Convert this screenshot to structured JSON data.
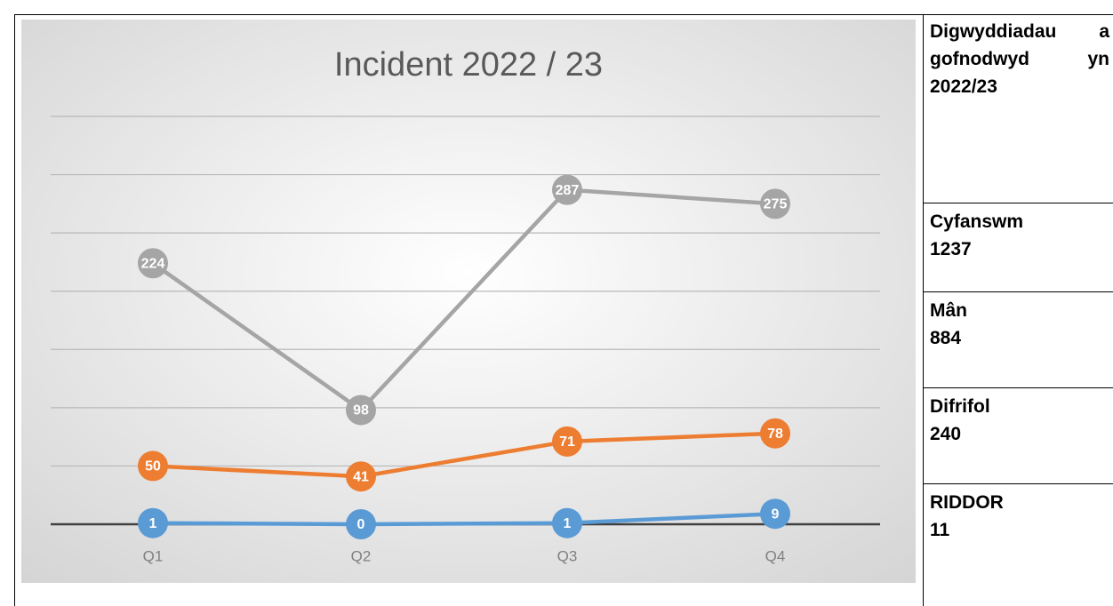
{
  "chart_data": {
    "type": "line",
    "title": "Incident 2022 / 23",
    "categories": [
      "Q1",
      "Q2",
      "Q3",
      "Q4"
    ],
    "series": [
      {
        "color": "#a5a5a5",
        "values": [
          224,
          98,
          287,
          275
        ]
      },
      {
        "color": "#ed7d31",
        "values": [
          50,
          41,
          71,
          78
        ]
      },
      {
        "color": "#5b9bd5",
        "values": [
          1,
          0,
          1,
          9
        ]
      }
    ],
    "ylim": [
      0,
      350
    ],
    "yticks": [
      0,
      50,
      100,
      150,
      200,
      250,
      300,
      350
    ],
    "grid": true
  },
  "side_table": {
    "heading": "Digwyddiadau a gofnodwyd yn 2022/23",
    "rows": [
      {
        "label": "Cyfanswm",
        "value": "1237"
      },
      {
        "label": "Mân",
        "value": "884"
      },
      {
        "label": "Difrifol",
        "value": "240"
      },
      {
        "label": "RIDDOR",
        "value": "11"
      }
    ]
  }
}
